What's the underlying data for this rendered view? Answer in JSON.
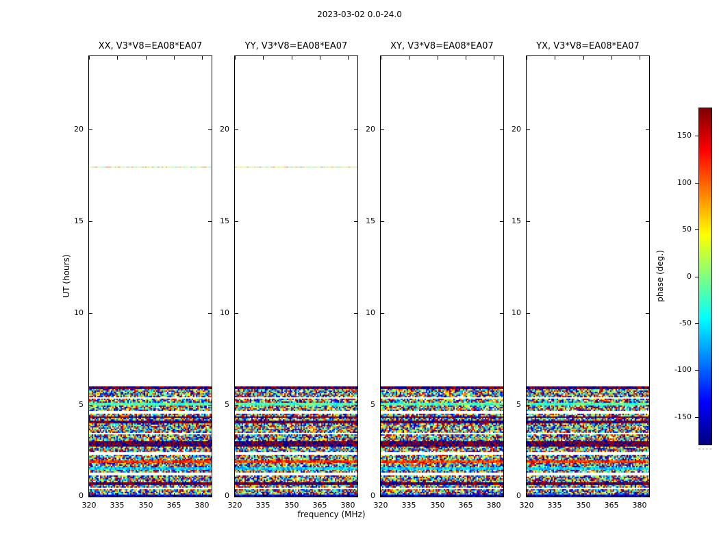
{
  "title": "2023-03-02 0.0-24.0",
  "ylabel": "UT (hours)",
  "xlabel": "frequency (MHz)",
  "colorbar": {
    "label": "phase (deg.)",
    "ticks": [
      150,
      100,
      50,
      0,
      -50,
      -100,
      -150
    ],
    "min": -180,
    "max": 180,
    "colormap": "jet"
  },
  "colors": {
    "background": "#ffffff",
    "axes": "#000000"
  },
  "chart_data": {
    "type": "heatmap",
    "panels": [
      {
        "title": "XX, V3*V8=EA08*EA07"
      },
      {
        "title": "YY, V3*V8=EA08*EA07"
      },
      {
        "title": "XY, V3*V8=EA08*EA07"
      },
      {
        "title": "YX, V3*V8=EA08*EA07"
      }
    ],
    "x": {
      "label": "frequency (MHz)",
      "min": 320,
      "max": 385,
      "ticks": [
        320,
        335,
        350,
        365,
        380
      ]
    },
    "y": {
      "label": "UT (hours)",
      "min": 0,
      "max": 24,
      "ticks": [
        0,
        5,
        10,
        15,
        20
      ]
    },
    "value": {
      "label": "phase (deg.)",
      "min": -180,
      "max": 180,
      "colormap": "jet"
    },
    "data_description": "Waterfall plots of visibility phase vs frequency (320-385 MHz) and UT (0-24 h) for baseline V3*V8=EA08*EA07, four correlations XX/YY/XY/YX. Dense random phase noise fills UT 0-6 h with horizontal flagged gaps and dark/tinted bands; a faint pale band appears near UT 18 in XX and YY; the rest is blank.",
    "noise_region": {
      "ut_min": 0,
      "ut_max": 6
    },
    "features": {
      "white_gaps_ut": [
        [
          0.44,
          0.52
        ],
        [
          1.18,
          1.32
        ],
        [
          2.28,
          2.42
        ],
        [
          3.36,
          3.44
        ],
        [
          4.52,
          4.64
        ],
        [
          5.32,
          5.44
        ]
      ],
      "dark_bands_ut": [
        [
          0.62,
          0.78
        ],
        [
          2.72,
          3.02
        ],
        [
          4.02,
          4.14
        ],
        [
          4.28,
          4.36
        ],
        [
          5.88,
          6.0
        ]
      ],
      "tint_bands": [
        {
          "ut": [
            0.0,
            0.12
          ],
          "phase": -150
        },
        {
          "ut": [
            1.48,
            1.58
          ],
          "phase": -60
        },
        {
          "ut": [
            1.86,
            1.96
          ],
          "phase": 120
        },
        {
          "ut": [
            5.0,
            5.1
          ],
          "phase": -20
        }
      ],
      "faint_band": {
        "ut": 18,
        "panels": [
          0,
          1
        ],
        "phase_range": [
          -60,
          120
        ]
      }
    }
  }
}
